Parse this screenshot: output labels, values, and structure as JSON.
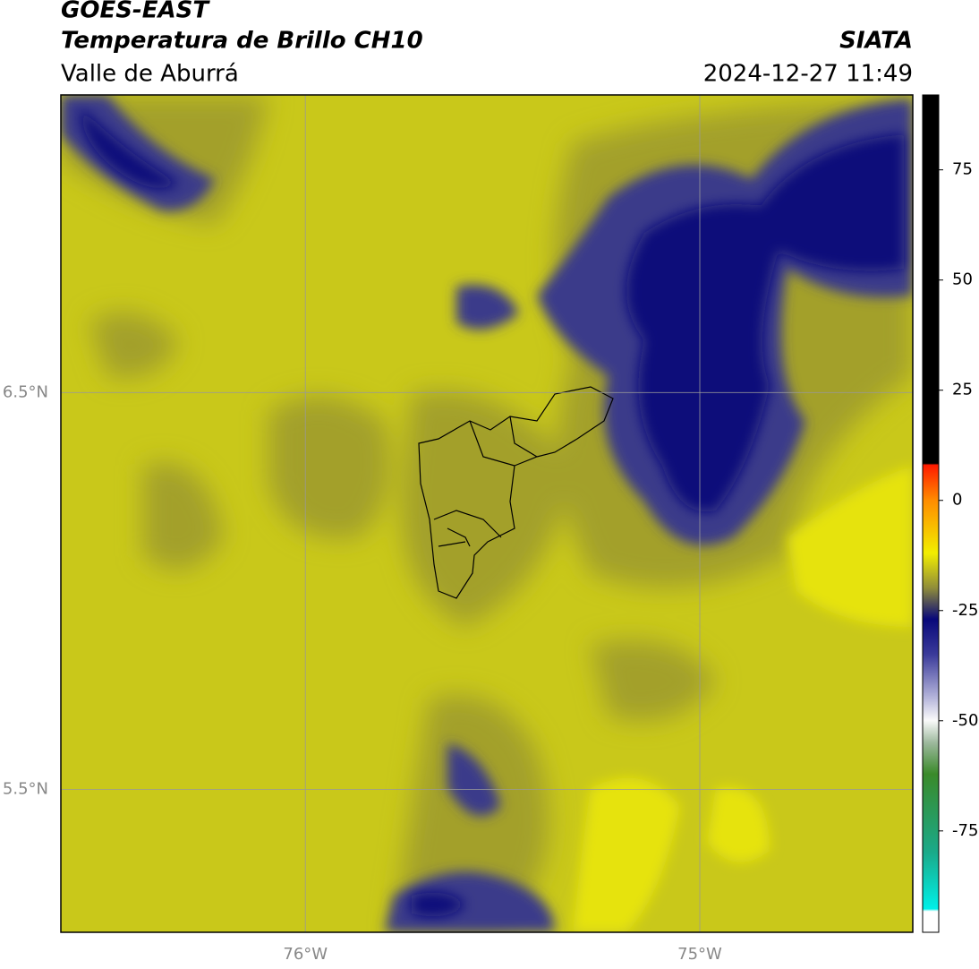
{
  "header": {
    "title": "GOES-EAST",
    "subtitle": "Temperatura de Brillo CH10",
    "region": "Valle de Aburrá",
    "agency": "SIATA",
    "datetime": "2024-12-27 11:49"
  },
  "map": {
    "xlim": [
      -76.62,
      -74.46
    ],
    "ylim": [
      5.14,
      7.25
    ],
    "xticks": [
      {
        "value": -76,
        "label": "76°W"
      },
      {
        "value": -75,
        "label": "75°W"
      }
    ],
    "yticks": [
      {
        "value": 5.5,
        "label": "5.5°N"
      },
      {
        "value": 6.5,
        "label": "6.5°N"
      }
    ],
    "grid": true
  },
  "colorbar": {
    "range": [
      -98,
      92
    ],
    "ticks": [
      -75,
      -50,
      -25,
      0,
      25,
      50,
      75
    ]
  }
}
